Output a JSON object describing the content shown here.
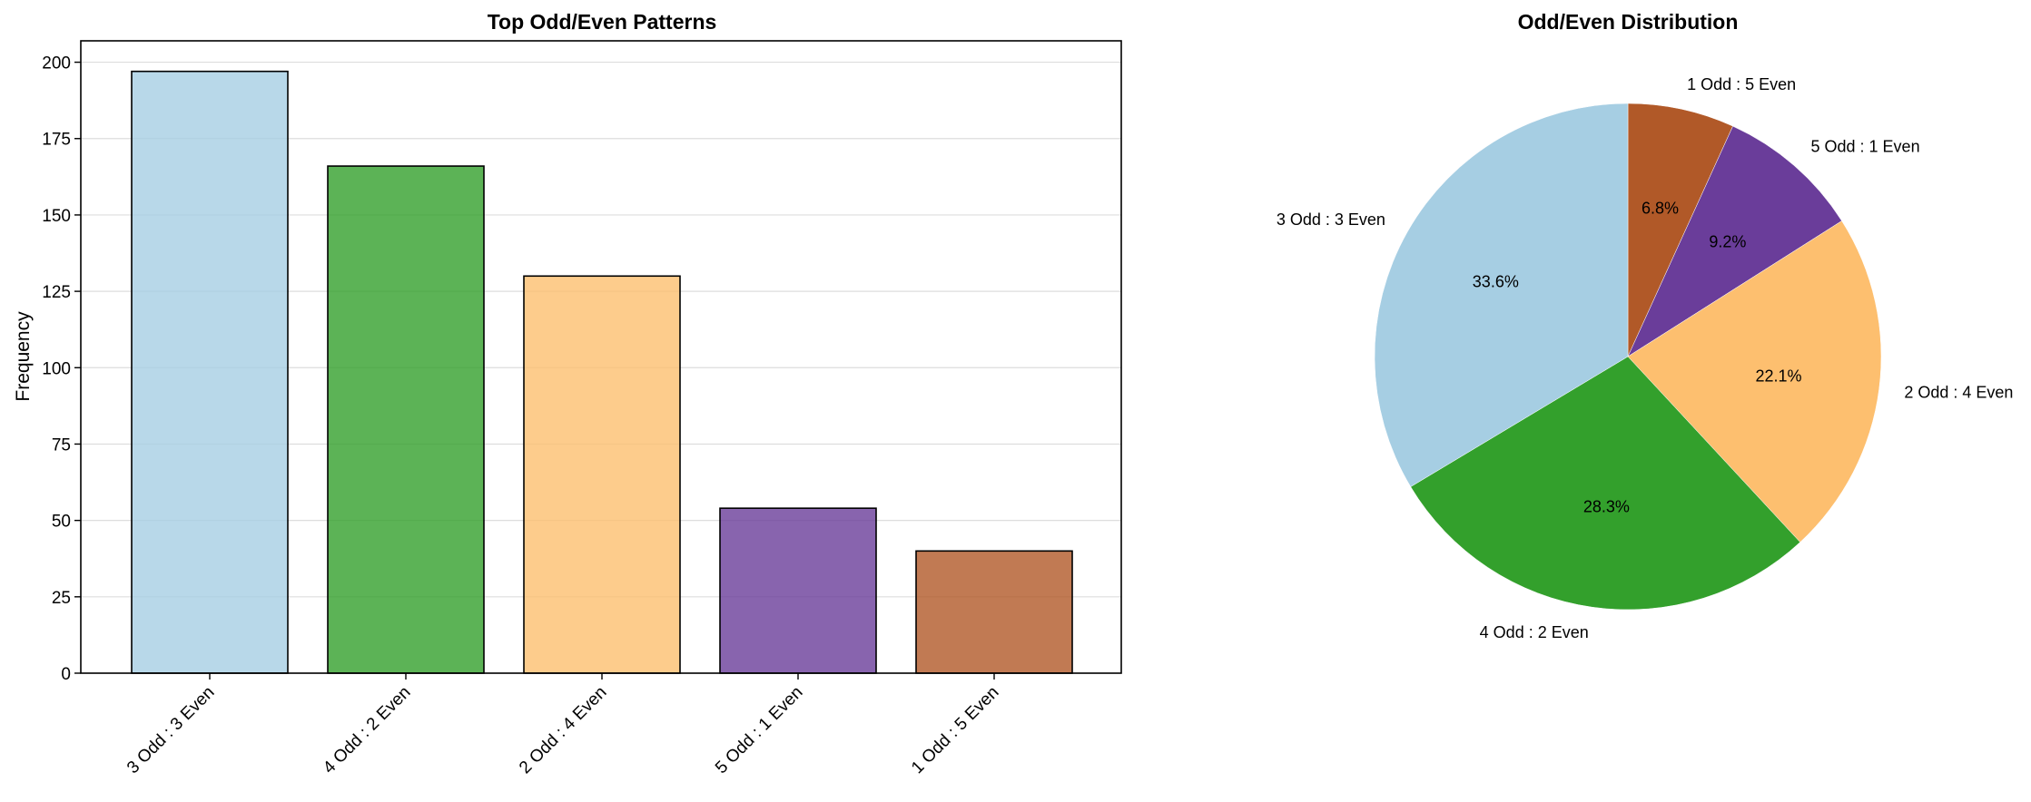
{
  "chart_data": [
    {
      "type": "bar",
      "title": "Top Odd/Even Patterns",
      "xlabel": "",
      "ylabel": "Frequency",
      "ylim": [
        0,
        207
      ],
      "yticks": [
        0,
        25,
        50,
        75,
        100,
        125,
        150,
        175,
        200
      ],
      "categories": [
        "3 Odd : 3 Even",
        "4 Odd : 2 Even",
        "2 Odd : 4 Even",
        "5 Odd : 1 Even",
        "1 Odd : 5 Even"
      ],
      "values": [
        197,
        166,
        130,
        54,
        40
      ],
      "colors": [
        "#a6cee3",
        "#33a02c",
        "#fdbf6f",
        "#6a3d9a",
        "#b15928"
      ],
      "grid": "horizontal",
      "legend": "none"
    },
    {
      "type": "pie",
      "title": "Odd/Even Distribution",
      "slices": [
        {
          "label": "1 Odd : 5 Even",
          "percent": "6.8%",
          "value": 6.8,
          "color": "#b15928"
        },
        {
          "label": "5 Odd : 1 Even",
          "percent": "9.2%",
          "value": 9.2,
          "color": "#6a3d9a"
        },
        {
          "label": "2 Odd : 4 Even",
          "percent": "22.1%",
          "value": 22.1,
          "color": "#fdbf6f"
        },
        {
          "label": "4 Odd : 2 Even",
          "percent": "28.3%",
          "value": 28.3,
          "color": "#33a02c"
        },
        {
          "label": "3 Odd : 3 Even",
          "percent": "33.6%",
          "value": 33.6,
          "color": "#a6cee3"
        }
      ],
      "start_angle": "top",
      "direction": "clockwise"
    }
  ]
}
